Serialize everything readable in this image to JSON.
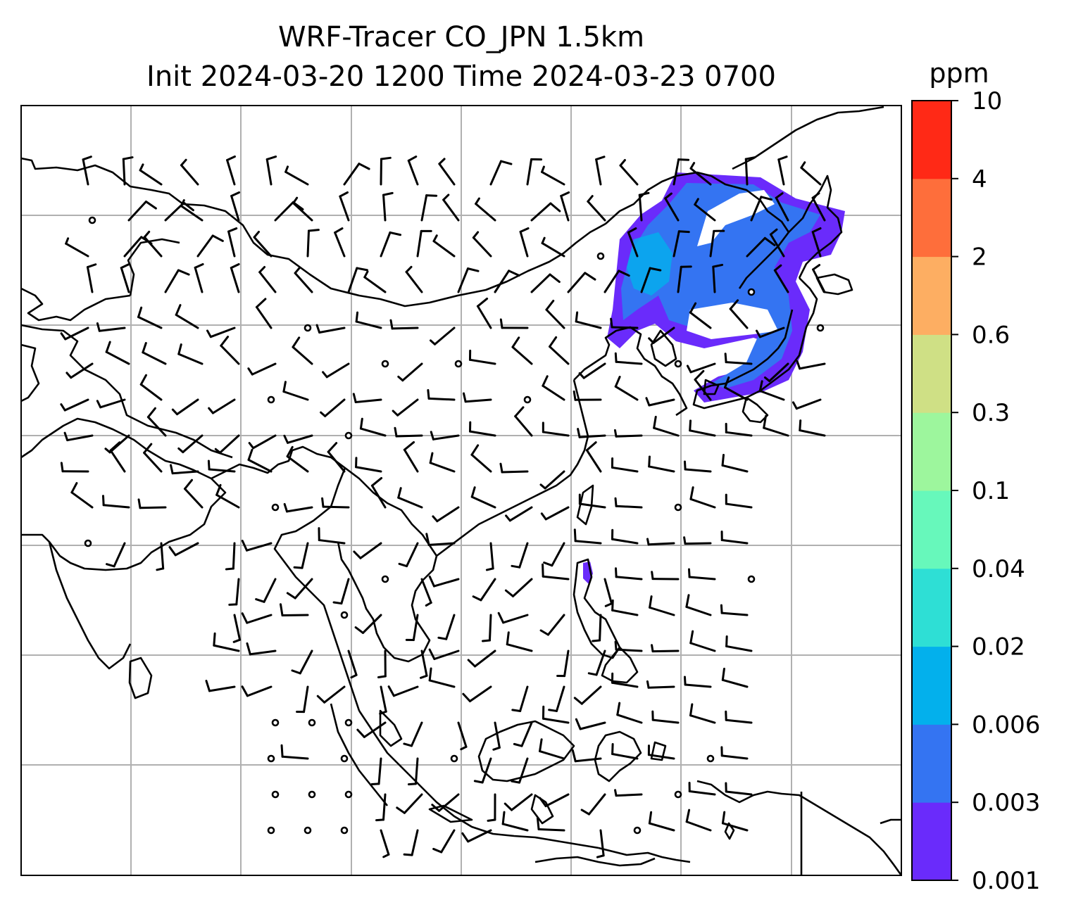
{
  "chart_data": {
    "type": "heatmap",
    "title_line1": "WRF-Tracer CO_JPN 1.5km",
    "title_line2": "Init 2024-03-20 1200 Time 2024-03-23 0700",
    "colorbar": {
      "label": "ppm",
      "levels": [
        "0.001",
        "0.003",
        "0.006",
        "0.02",
        "0.04",
        "0.1",
        "0.3",
        "0.6",
        "2",
        "4",
        "10"
      ],
      "colors": [
        "#6a2bfb",
        "#3474f2",
        "#03b0ec",
        "#2edfd5",
        "#67f8bb",
        "#9df69d",
        "#cfe085",
        "#fdae62",
        "#fe6e3b",
        "#ff2916"
      ]
    },
    "grid": true,
    "overlays": [
      "coastlines",
      "wind barbs"
    ],
    "legend": "none"
  }
}
